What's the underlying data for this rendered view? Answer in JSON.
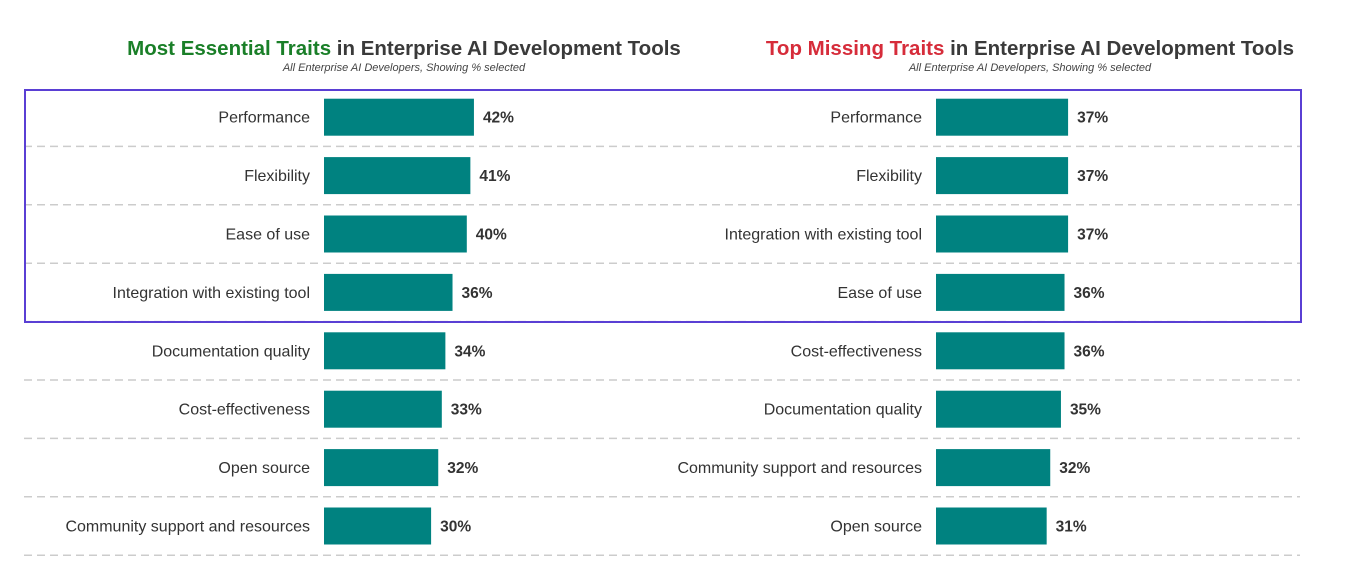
{
  "colors": {
    "bar": "#008280",
    "title_green": "#1a7f28",
    "title_red": "#d62c3a",
    "title_dark": "#3a3a3a",
    "highlight": "#5a3fd4",
    "grid": "#cccccc"
  },
  "chart_data": [
    {
      "type": "bar",
      "orientation": "horizontal",
      "title_highlight": "Most Essential Traits",
      "title_rest": " in Enterprise AI Development Tools",
      "subtitle": "All Enterprise AI Developers, Showing % selected",
      "categories": [
        "Performance",
        "Flexibility",
        "Ease of use",
        "Integration with existing tool",
        "Documentation quality",
        "Cost-effectiveness",
        "Open source",
        "Community support and resources"
      ],
      "values": [
        42,
        41,
        40,
        36,
        34,
        33,
        32,
        30
      ],
      "value_labels": [
        "42%",
        "41%",
        "40%",
        "36%",
        "34%",
        "33%",
        "32%",
        "30%"
      ],
      "unit": "%",
      "highlighted_rows": 4
    },
    {
      "type": "bar",
      "orientation": "horizontal",
      "title_highlight": "Top Missing Traits",
      "title_rest": " in Enterprise AI Development Tools",
      "subtitle": "All Enterprise AI Developers, Showing % selected",
      "categories": [
        "Performance",
        "Flexibility",
        "Integration with existing tool",
        "Ease of use",
        "Cost-effectiveness",
        "Documentation quality",
        "Community support and resources",
        "Open source"
      ],
      "values": [
        37,
        37,
        37,
        36,
        36,
        35,
        32,
        31
      ],
      "value_labels": [
        "37%",
        "37%",
        "37%",
        "36%",
        "36%",
        "35%",
        "32%",
        "31%"
      ],
      "unit": "%",
      "highlighted_rows": 4
    }
  ]
}
